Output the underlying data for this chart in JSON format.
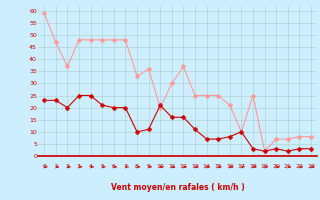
{
  "x": [
    0,
    1,
    2,
    3,
    4,
    5,
    6,
    7,
    8,
    9,
    10,
    11,
    12,
    13,
    14,
    15,
    16,
    17,
    18,
    19,
    20,
    21,
    22,
    23
  ],
  "wind_avg": [
    23,
    23,
    20,
    25,
    25,
    21,
    20,
    20,
    10,
    11,
    21,
    16,
    16,
    11,
    7,
    7,
    8,
    10,
    3,
    2,
    3,
    2,
    3,
    3
  ],
  "wind_gust": [
    59,
    47,
    37,
    48,
    48,
    48,
    48,
    48,
    33,
    36,
    20,
    30,
    37,
    25,
    25,
    25,
    21,
    10,
    25,
    2,
    7,
    7,
    8,
    8
  ],
  "xlabel": "Vent moyen/en rafales ( km/h )",
  "ylim": [
    0,
    62
  ],
  "xlim": [
    -0.5,
    23.5
  ],
  "yticks": [
    0,
    5,
    10,
    15,
    20,
    25,
    30,
    35,
    40,
    45,
    50,
    55,
    60
  ],
  "xticks": [
    0,
    1,
    2,
    3,
    4,
    5,
    6,
    7,
    8,
    9,
    10,
    11,
    12,
    13,
    14,
    15,
    16,
    17,
    18,
    19,
    20,
    21,
    22,
    23
  ],
  "bg_color": "#cceeff",
  "grid_color": "#aacccc",
  "avg_color": "#cc0000",
  "gust_color": "#ff9999",
  "marker_size": 2.5,
  "linewidth": 0.8,
  "xlabel_color": "#cc0000",
  "tick_color": "#cc0000",
  "xlabel_fontsize": 5.5,
  "tick_fontsize": 4.5
}
